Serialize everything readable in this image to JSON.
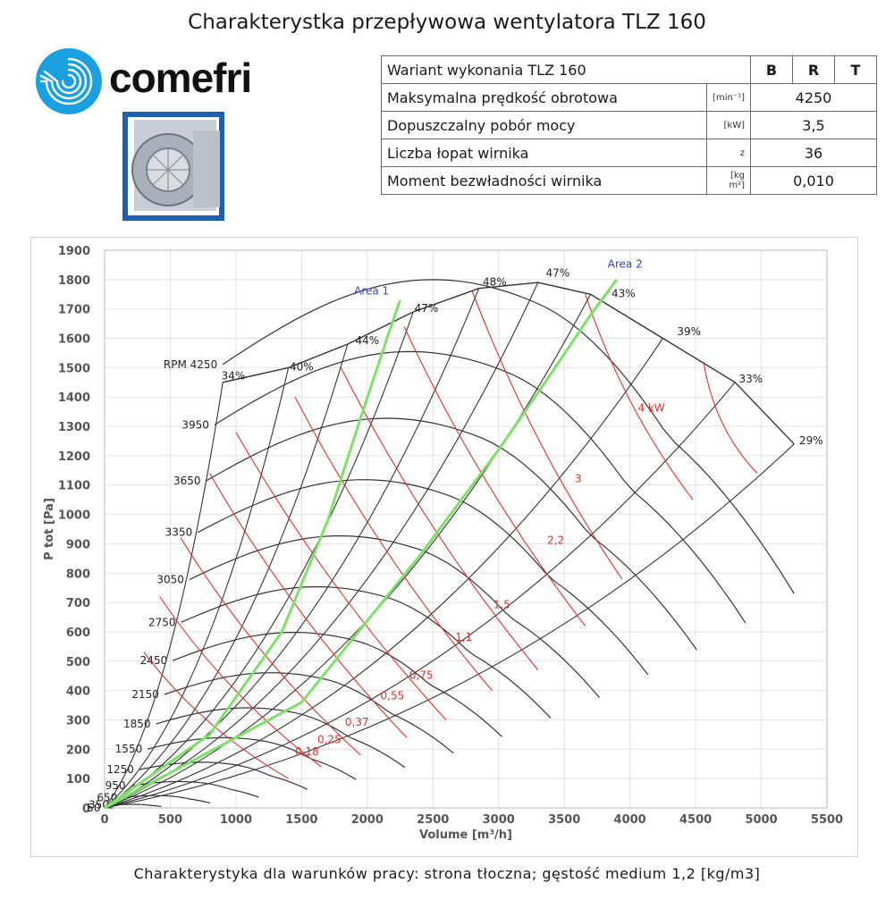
{
  "page": {
    "title": "Charakterystka przepływowa wentylatora TLZ 160",
    "brand": "comefri",
    "footnote": "Charakterystyka dla warunków pracy: strona tłoczna; gęstość medium 1,2 [kg/m3]"
  },
  "spec_table": {
    "header": {
      "label": "Wariant wykonania TLZ 160",
      "cols": [
        "B",
        "R",
        "T"
      ]
    },
    "rows": [
      {
        "label": "Maksymalna prędkość obrotowa",
        "unit": "[min⁻¹]",
        "value": "4250"
      },
      {
        "label": "Dopuszczalny pobór mocy",
        "unit": "[kW]",
        "value": "3,5"
      },
      {
        "label": "Liczba łopat wirnika",
        "unit": "z",
        "value": "36"
      },
      {
        "label": "Moment bezwładności wirnika",
        "unit": "[kg m²]",
        "value": "0,010"
      }
    ]
  },
  "chart_data": {
    "type": "line",
    "xlabel": "Volume [m³/h]",
    "ylabel": "P tot [Pa]",
    "xlim": [
      0,
      5500
    ],
    "ylim": [
      0,
      1900
    ],
    "x_ticks": [
      0,
      500,
      1000,
      1500,
      2000,
      2500,
      3000,
      3500,
      4000,
      4500,
      5000,
      5500
    ],
    "y_ticks": [
      0,
      100,
      200,
      300,
      400,
      500,
      600,
      700,
      800,
      900,
      1000,
      1100,
      1200,
      1300,
      1400,
      1500,
      1600,
      1700,
      1800,
      1900
    ],
    "grid": true,
    "colors": {
      "rpm_curves": "#333333",
      "power_curves": "#e0302a",
      "area_curves": "#7ee06a",
      "area_labels": "#3344cc",
      "axis_text": "#555555"
    },
    "rpm_curves": [
      {
        "label": "RPM 4250",
        "rpm": 4250
      },
      {
        "label": "3950",
        "rpm": 3950
      },
      {
        "label": "3650",
        "rpm": 3650
      },
      {
        "label": "3350",
        "rpm": 3350
      },
      {
        "label": "3050",
        "rpm": 3050
      },
      {
        "label": "2750",
        "rpm": 2750
      },
      {
        "label": "2450",
        "rpm": 2450
      },
      {
        "label": "2150",
        "rpm": 2150
      },
      {
        "label": "1850",
        "rpm": 1850
      },
      {
        "label": "1550",
        "rpm": 1550
      },
      {
        "label": "1250",
        "rpm": 1250
      },
      {
        "label": "950",
        "rpm": 950
      },
      {
        "label": "650",
        "rpm": 650
      },
      {
        "label": "350",
        "rpm": 350
      },
      {
        "label": "50",
        "rpm": 50
      }
    ],
    "top_curve": {
      "x": [
        900,
        1400,
        1850,
        2350,
        2850,
        3300,
        3700,
        4250,
        4800,
        5250
      ],
      "y": [
        1450,
        1500,
        1580,
        1690,
        1770,
        1790,
        1750,
        1600,
        1450,
        1240
      ]
    },
    "efficiency_labels": [
      {
        "label": "34%",
        "x": 980,
        "y": 1460
      },
      {
        "label": "40%",
        "x": 1500,
        "y": 1490
      },
      {
        "label": "44%",
        "x": 2000,
        "y": 1580
      },
      {
        "label": "47%",
        "x": 2450,
        "y": 1690
      },
      {
        "label": "48%",
        "x": 2970,
        "y": 1780
      },
      {
        "label": "47%",
        "x": 3450,
        "y": 1810
      },
      {
        "label": "43%",
        "x": 3950,
        "y": 1740
      },
      {
        "label": "39%",
        "x": 4450,
        "y": 1610
      },
      {
        "label": "33%",
        "x": 4920,
        "y": 1450
      },
      {
        "label": "29%",
        "x": 5380,
        "y": 1240
      }
    ],
    "power_curves": [
      {
        "label": "4 kW",
        "x": [
          4560,
          4970
        ],
        "y": [
          1520,
          1140
        ],
        "lx": 4060,
        "ly": 1350
      },
      {
        "label": "",
        "x": [
          3660,
          4480
        ],
        "y": [
          1750,
          1050
        ],
        "lx": null,
        "ly": null
      },
      {
        "label": "3",
        "x": [
          2800,
          3940
        ],
        "y": [
          1760,
          780
        ],
        "lx": 3580,
        "ly": 1110
      },
      {
        "label": "2,2",
        "x": [
          2280,
          3660
        ],
        "y": [
          1640,
          620
        ],
        "lx": 3370,
        "ly": 900
      },
      {
        "label": "1,5",
        "x": [
          1800,
          3300
        ],
        "y": [
          1500,
          470
        ],
        "lx": 2960,
        "ly": 680
      },
      {
        "label": "1,1",
        "x": [
          1450,
          2950
        ],
        "y": [
          1400,
          400
        ],
        "lx": 2670,
        "ly": 570
      },
      {
        "label": "0,75",
        "x": [
          1000,
          2600
        ],
        "y": [
          1280,
          300
        ],
        "lx": 2320,
        "ly": 440
      },
      {
        "label": "0,55",
        "x": [
          800,
          2300
        ],
        "y": [
          1140,
          240
        ],
        "lx": 2100,
        "ly": 370
      },
      {
        "label": "0,37",
        "x": [
          580,
          1950
        ],
        "y": [
          920,
          180
        ],
        "lx": 1830,
        "ly": 280
      },
      {
        "label": "0,25",
        "x": [
          420,
          1650
        ],
        "y": [
          720,
          140
        ],
        "lx": 1620,
        "ly": 220
      },
      {
        "label": "0,18",
        "x": [
          300,
          1400
        ],
        "y": [
          530,
          100
        ],
        "lx": 1450,
        "ly": 180
      }
    ],
    "area_curves": [
      {
        "label": "Area 1",
        "x": [
          0,
          800,
          1350,
          1700,
          1950,
          2150,
          2250
        ],
        "y": [
          0,
          250,
          600,
          980,
          1330,
          1600,
          1730
        ],
        "lx": 1900,
        "ly": 1750
      },
      {
        "label": "Area 2",
        "x": [
          0,
          1500,
          2400,
          3000,
          3400,
          3700,
          3900
        ],
        "y": [
          0,
          360,
          860,
          1220,
          1480,
          1680,
          1800
        ],
        "lx": 3830,
        "ly": 1840
      }
    ]
  }
}
